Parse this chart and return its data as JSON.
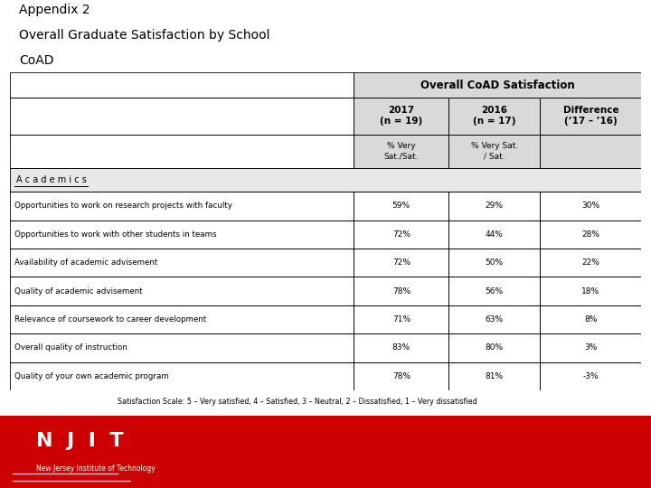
{
  "title_line1": "Appendix 2",
  "title_line2": "Overall Graduate Satisfaction by School",
  "title_line3": "CoAD",
  "table_main_header": "Overall CoAD Satisfaction",
  "col_headers_row1": [
    "2017\n(n = 19)",
    "2016\n(n = 17)",
    "Difference\n(’17 – ’16)"
  ],
  "col_headers_row2": [
    "% Very\nSat./Sat.",
    "% Very Sat.\n/ Sat.",
    ""
  ],
  "section_label": "A c a d e m i c s",
  "rows": [
    [
      "Opportunities to work on research projects with faculty",
      "59%",
      "29%",
      "30%"
    ],
    [
      "Opportunities to work with other students in teams",
      "72%",
      "44%",
      "28%"
    ],
    [
      "Availability of academic advisement",
      "72%",
      "50%",
      "22%"
    ],
    [
      "Quality of academic advisement",
      "78%",
      "56%",
      "18%"
    ],
    [
      "Relevance of coursework to career development",
      "71%",
      "63%",
      "8%"
    ],
    [
      "Overall quality of instruction",
      "83%",
      "80%",
      "3%"
    ],
    [
      "Quality of your own academic program",
      "78%",
      "81%",
      "-3%"
    ]
  ],
  "footnote": "Satisfaction Scale: 5 – Very satisfied, 4 – Satisfied, 3 – Neutral, 2 – Dissatisfied, 1 – Very dissatisfied",
  "njit_bar_color": "#cc0000",
  "bg_color": "#ffffff",
  "header_bg": "#d9d9d9",
  "section_bg": "#e8e8e8",
  "table_border_color": "#000000",
  "title_fontsize": 10,
  "table_fontsize": 6.5,
  "header_fontsize": 7.5,
  "footnote_fontsize": 5.8,
  "njit_red": "#cc0000"
}
